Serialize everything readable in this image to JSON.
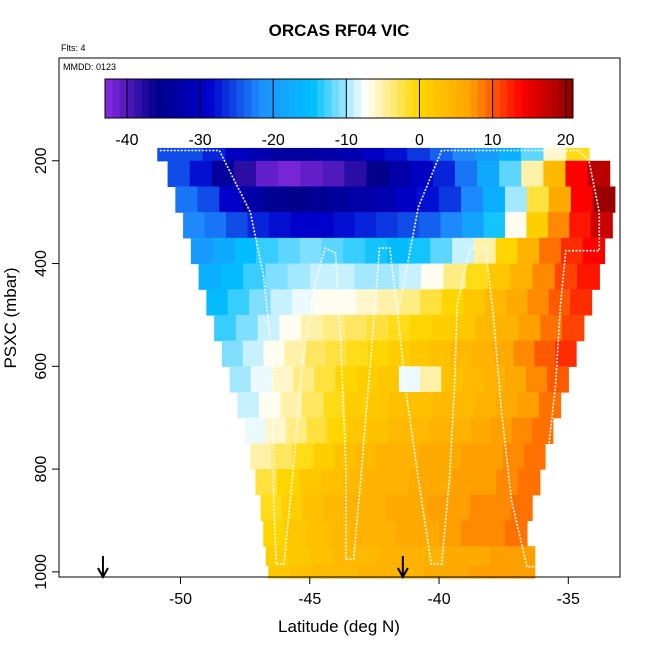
{
  "chart_data": {
    "type": "heatmap",
    "title": "ORCAS RF04 VIC",
    "annotations": {
      "flights": "Flts: 4",
      "date": "MMDD: 0123"
    },
    "xlabel": "Latitude (deg N)",
    "ylabel": "PSXC (mbar)",
    "xlim": [
      -54.7,
      -33.0
    ],
    "ylim": [
      1010,
      0
    ],
    "x_ticks": [
      -50,
      -45,
      -40,
      -35
    ],
    "x_tick_labels": [
      "-50",
      "-45",
      "-40",
      "-35"
    ],
    "y_ticks": [
      200,
      400,
      600,
      800,
      1000
    ],
    "y_tick_labels": [
      "200",
      "400",
      "600",
      "800",
      "1000"
    ],
    "colorbar": {
      "range": [
        -43,
        21
      ],
      "ticks": [
        -40,
        -30,
        -20,
        -10,
        0,
        10,
        20
      ],
      "tick_labels": [
        "-40",
        "-30",
        "-20",
        "-10",
        "0",
        "10",
        "20"
      ],
      "colors": [
        "#8a2be2",
        "#00008b",
        "#0000cd",
        "#1e90ff",
        "#00bfff",
        "#ffffff",
        "#ffd700",
        "#ffa500",
        "#ff0000",
        "#8b0000"
      ]
    },
    "arrows_x": [
      -53.0,
      -41.4
    ],
    "rows": [
      {
        "p": 175,
        "x0": -50.9,
        "x1": -34.2,
        "v": [
          -25,
          -25,
          -27,
          -30,
          -32,
          -34,
          -34,
          -33,
          -32,
          -30,
          -28,
          -26,
          -24,
          -22,
          -20,
          -17,
          -12,
          -6,
          -1
        ]
      },
      {
        "p": 225,
        "x0": -50.5,
        "x1": -33.4,
        "v": [
          -25,
          -28,
          -34,
          -38,
          -41,
          -42,
          -41,
          -40,
          -38,
          -36,
          -33,
          -30,
          -27,
          -23,
          -18,
          -12,
          -5,
          4,
          14,
          18
        ]
      },
      {
        "p": 275,
        "x0": -50.2,
        "x1": -33.2,
        "v": [
          -23,
          -25,
          -29,
          -33,
          -35,
          -36,
          -35,
          -34,
          -33,
          -32,
          -30,
          -28,
          -26,
          -22,
          -17,
          -10,
          -2,
          6,
          14,
          20
        ]
      },
      {
        "p": 325,
        "x0": -49.9,
        "x1": -33.3,
        "v": [
          -22,
          -23,
          -25,
          -27,
          -28,
          -29,
          -29,
          -28,
          -27,
          -26,
          -25,
          -24,
          -22,
          -19,
          -14,
          -7,
          1,
          8,
          13,
          17
        ]
      },
      {
        "p": 375,
        "x0": -49.6,
        "x1": -33.6,
        "v": [
          -20,
          -18,
          -15,
          -13,
          -12,
          -11,
          -12,
          -13,
          -14,
          -15,
          -14,
          -12,
          -9,
          -5,
          0,
          5,
          9,
          12,
          14
        ]
      },
      {
        "p": 425,
        "x0": -49.3,
        "x1": -33.8,
        "v": [
          -17,
          -15,
          -13,
          -11,
          -10,
          -9,
          -9,
          -10,
          -10,
          -9,
          -7,
          -4,
          -1,
          2,
          5,
          8,
          11,
          13
        ]
      },
      {
        "p": 475,
        "x0": -49.0,
        "x1": -34.1,
        "v": [
          -15,
          -13,
          -11,
          -9,
          -8,
          -7,
          -7,
          -6,
          -5,
          -4,
          -2,
          0,
          2,
          4,
          6,
          8,
          10,
          12
        ]
      },
      {
        "p": 525,
        "x0": -48.7,
        "x1": -34.4,
        "v": [
          -13,
          -11,
          -9,
          -7,
          -5,
          -4,
          -3,
          -2,
          -1,
          0,
          1,
          2,
          4,
          5,
          7,
          9,
          11
        ]
      },
      {
        "p": 575,
        "x0": -48.4,
        "x1": -34.7,
        "v": [
          -11,
          -9,
          -7,
          -5,
          -3,
          -2,
          -1,
          0,
          1,
          2,
          3,
          4,
          5,
          6,
          8,
          10,
          12
        ]
      },
      {
        "p": 625,
        "x0": -48.1,
        "x1": -35.0,
        "v": [
          -10,
          -8,
          -6,
          -4,
          -2,
          0,
          1,
          2,
          -8,
          -5,
          3,
          4,
          5,
          6,
          8,
          10
        ]
      },
      {
        "p": 675,
        "x0": -47.8,
        "x1": -35.3,
        "v": [
          -9,
          -7,
          -5,
          -3,
          -1,
          1,
          2,
          3,
          3,
          4,
          4,
          5,
          6,
          7,
          9
        ]
      },
      {
        "p": 725,
        "x0": -47.5,
        "x1": -35.6,
        "v": [
          -8,
          -6,
          -4,
          -2,
          0,
          2,
          3,
          4,
          4,
          5,
          5,
          6,
          7,
          8,
          9
        ]
      },
      {
        "p": 775,
        "x0": -47.3,
        "x1": -35.9,
        "v": [
          -5,
          -3,
          -1,
          1,
          3,
          4,
          5,
          5,
          6,
          6,
          7,
          7,
          8,
          9
        ]
      },
      {
        "p": 825,
        "x0": -47.1,
        "x1": -36.1,
        "v": [
          -2,
          0,
          2,
          3,
          4,
          5,
          5,
          6,
          6,
          7,
          7,
          8,
          9
        ]
      },
      {
        "p": 875,
        "x0": -46.9,
        "x1": -36.4,
        "v": [
          -1,
          1,
          3,
          4,
          5,
          5,
          6,
          6,
          7,
          7,
          8,
          8,
          9
        ]
      },
      {
        "p": 925,
        "x0": -46.8,
        "x1": -36.6,
        "v": [
          0,
          2,
          3,
          4,
          5,
          5,
          6,
          6,
          7,
          8,
          8,
          9
        ]
      },
      {
        "p": 975,
        "x0": -46.7,
        "x1": -36.3,
        "v": [
          1,
          2,
          3,
          4,
          4,
          5,
          5,
          5,
          6,
          6,
          7,
          7
        ]
      },
      {
        "p": 1000,
        "x0": -46.6,
        "x1": -36.3,
        "v": [
          2,
          3,
          4,
          4,
          5,
          5,
          5,
          6,
          6,
          7,
          7,
          7
        ]
      }
    ],
    "flight_track": [
      [
        -50.8,
        180
      ],
      [
        -48.5,
        180
      ],
      [
        -47.3,
        300
      ],
      [
        -46.8,
        420
      ],
      [
        -46.5,
        560
      ],
      [
        -46.4,
        700
      ],
      [
        -46.4,
        860
      ],
      [
        -46.3,
        985
      ],
      [
        -46.0,
        985
      ],
      [
        -45.6,
        780
      ],
      [
        -45.3,
        600
      ],
      [
        -44.8,
        440
      ],
      [
        -44.4,
        370
      ],
      [
        -44.0,
        380
      ],
      [
        -43.8,
        560
      ],
      [
        -43.6,
        800
      ],
      [
        -43.6,
        975
      ],
      [
        -43.3,
        975
      ],
      [
        -43.0,
        800
      ],
      [
        -42.6,
        560
      ],
      [
        -42.3,
        370
      ],
      [
        -41.9,
        370
      ],
      [
        -41.6,
        500
      ],
      [
        -41.3,
        640
      ],
      [
        -40.8,
        820
      ],
      [
        -40.3,
        985
      ],
      [
        -39.9,
        985
      ],
      [
        -39.6,
        820
      ],
      [
        -39.4,
        640
      ],
      [
        -39.3,
        480
      ],
      [
        -38.8,
        370
      ],
      [
        -38.2,
        370
      ],
      [
        -37.9,
        500
      ],
      [
        -37.6,
        680
      ],
      [
        -37.2,
        860
      ],
      [
        -36.6,
        990
      ],
      [
        -36.2,
        990
      ],
      [
        -35.9,
        820
      ],
      [
        -35.5,
        640
      ],
      [
        -35.3,
        480
      ],
      [
        -35.1,
        375
      ],
      [
        -33.8,
        375
      ],
      [
        -33.8,
        300
      ],
      [
        -34.2,
        200
      ],
      [
        -34.6,
        180
      ],
      [
        -39.9,
        180
      ],
      [
        -40.8,
        290
      ],
      [
        -41.6,
        500
      ]
    ]
  }
}
